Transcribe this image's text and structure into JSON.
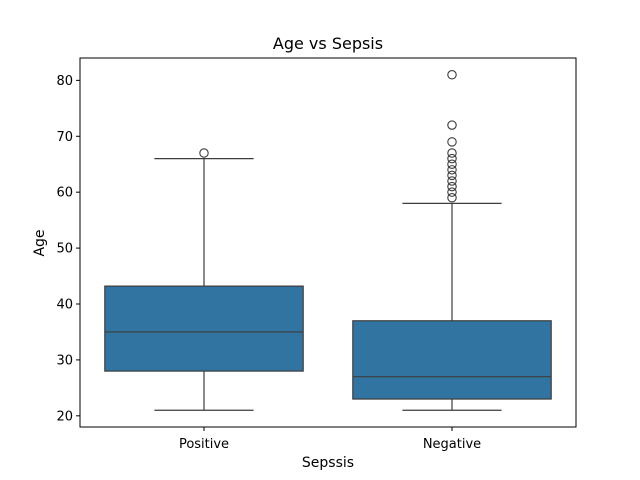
{
  "chart_data": {
    "type": "box",
    "title": "Age vs Sepsis",
    "xlabel": "Sepssis",
    "ylabel": "Age",
    "ylim": [
      18,
      84
    ],
    "yticks": [
      20,
      30,
      40,
      50,
      60,
      70,
      80
    ],
    "categories": [
      "Positive",
      "Negative"
    ],
    "boxes": [
      {
        "category": "Positive",
        "whisker_low": 21,
        "q1": 28,
        "median": 35,
        "q3": 43.2,
        "whisker_high": 66,
        "outliers": [
          67
        ]
      },
      {
        "category": "Negative",
        "whisker_low": 21,
        "q1": 23,
        "median": 27,
        "q3": 37,
        "whisker_high": 58,
        "outliers": [
          59,
          60,
          61,
          62,
          63,
          64,
          65,
          66,
          67,
          69,
          72,
          81
        ]
      }
    ],
    "box_color": "#3274a1",
    "line_color": "#3d3d3d",
    "grid": false,
    "legend": "none"
  }
}
